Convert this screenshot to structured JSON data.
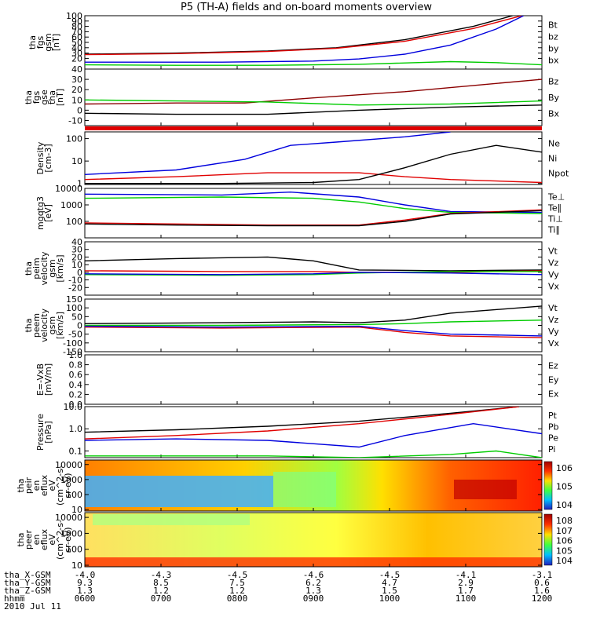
{
  "title": "P5 (TH-A) fields and on-board moments overview",
  "date": "2010 Jul 11",
  "colors": {
    "black": "#000000",
    "red": "#e00000",
    "green": "#00cc00",
    "blue": "#0000dd",
    "darkred": "#8b0000"
  },
  "chart_data": [
    {
      "type": "line",
      "ylabel": [
        "tha",
        "fgs",
        "gsm",
        "[nT]"
      ],
      "ylim": [
        0,
        100
      ],
      "yticks": [
        "100",
        "90",
        "80",
        "70",
        "60",
        "50",
        "40",
        "30",
        "20"
      ],
      "legend": [
        {
          "label": "Bt",
          "color": "black"
        },
        {
          "label": "bz",
          "color": "red"
        },
        {
          "label": "by",
          "color": "green"
        },
        {
          "label": "bx",
          "color": "blue"
        }
      ],
      "series": [
        {
          "name": "Bt",
          "color": "black",
          "x": [
            0,
            0.2,
            0.4,
            0.55,
            0.7,
            0.85,
            1.0
          ],
          "y": [
            28,
            30,
            34,
            40,
            55,
            80,
            115
          ]
        },
        {
          "name": "bz",
          "color": "red",
          "x": [
            0,
            0.2,
            0.4,
            0.55,
            0.7,
            0.85,
            1.0
          ],
          "y": [
            27,
            29,
            33,
            39,
            52,
            76,
            110
          ]
        },
        {
          "name": "by",
          "color": "green",
          "x": [
            0,
            0.2,
            0.4,
            0.6,
            0.8,
            0.9,
            1.0
          ],
          "y": [
            8,
            7,
            7,
            9,
            14,
            12,
            8
          ]
        },
        {
          "name": "bx",
          "color": "blue",
          "x": [
            0,
            0.3,
            0.5,
            0.6,
            0.7,
            0.8,
            0.9,
            0.96
          ],
          "y": [
            13,
            13,
            15,
            19,
            28,
            45,
            75,
            100
          ]
        }
      ]
    },
    {
      "type": "line",
      "ylabel": [
        "tha",
        "fgs",
        "gse",
        "tha",
        "[nT]"
      ],
      "ylim": [
        -15,
        40
      ],
      "yticks": [
        "40",
        "30",
        "20",
        "10",
        "0",
        "-10"
      ],
      "legend": [
        {
          "label": "Bz",
          "color": "darkred"
        },
        {
          "label": "By",
          "color": "green"
        },
        {
          "label": "Bx",
          "color": "black"
        }
      ],
      "series": [
        {
          "name": "Bz",
          "color": "darkred",
          "x": [
            0,
            0.2,
            0.35,
            0.5,
            0.7,
            0.85,
            1.0
          ],
          "y": [
            6,
            7,
            7,
            12,
            18,
            24,
            30
          ]
        },
        {
          "name": "By",
          "color": "green",
          "x": [
            0,
            0.2,
            0.4,
            0.6,
            0.8,
            1.0
          ],
          "y": [
            10,
            9,
            8,
            5,
            6,
            9
          ]
        },
        {
          "name": "Bx",
          "color": "black",
          "x": [
            0,
            0.2,
            0.4,
            0.6,
            0.8,
            1.0
          ],
          "y": [
            -3,
            -4,
            -4,
            0,
            3,
            5
          ]
        }
      ]
    },
    {
      "type": "line",
      "ylabel": [
        "Density",
        "[cm-3]"
      ],
      "yscale": "log",
      "ylim": [
        0.9,
        200
      ],
      "yticks": [
        "100",
        "10",
        "1"
      ],
      "legend": [
        {
          "label": "Ne",
          "color": "darkred"
        },
        {
          "label": "Ni",
          "color": "black"
        },
        {
          "label": "Npot",
          "color": "blue"
        }
      ],
      "series": [
        {
          "name": "Npot",
          "color": "blue",
          "x": [
            0,
            0.2,
            0.35,
            0.45,
            0.55,
            0.7,
            0.8
          ],
          "y": [
            2.5,
            4,
            12,
            50,
            70,
            120,
            200
          ]
        },
        {
          "name": "Ne",
          "color": "red",
          "x": [
            0,
            0.2,
            0.4,
            0.6,
            0.7,
            0.8,
            1.0
          ],
          "y": [
            1.5,
            2,
            3,
            3,
            2,
            1.5,
            1.1
          ]
        },
        {
          "name": "Ni",
          "color": "black",
          "x": [
            0,
            0.3,
            0.5,
            0.6,
            0.7,
            0.8,
            0.9,
            1.0
          ],
          "y": [
            1,
            1,
            1.1,
            1.5,
            5,
            20,
            50,
            25
          ]
        }
      ]
    },
    {
      "type": "line",
      "ylabel": [
        "mgqtg3",
        "[eV]"
      ],
      "yscale": "log",
      "ylim": [
        10,
        10000
      ],
      "yticks": [
        "10000",
        "1000",
        "100"
      ],
      "legend": [
        {
          "label": "Te⊥",
          "color": "red"
        },
        {
          "label": "Te∥",
          "color": "black"
        },
        {
          "label": "Ti⊥",
          "color": "darkred"
        },
        {
          "label": "Ti∥",
          "color": "green"
        }
      ],
      "series": [
        {
          "name": "Ti⊥",
          "color": "blue",
          "x": [
            0,
            0.3,
            0.45,
            0.6,
            0.7,
            0.8,
            1.0
          ],
          "y": [
            4500,
            4000,
            6000,
            3000,
            1000,
            400,
            350
          ]
        },
        {
          "name": "Ti∥",
          "color": "green",
          "x": [
            0,
            0.3,
            0.5,
            0.6,
            0.7,
            0.8,
            1.0
          ],
          "y": [
            2500,
            3000,
            2500,
            1500,
            600,
            350,
            300
          ]
        },
        {
          "name": "Te⊥",
          "color": "red",
          "x": [
            0,
            0.2,
            0.4,
            0.6,
            0.7,
            0.8,
            1.0
          ],
          "y": [
            80,
            70,
            60,
            60,
            120,
            300,
            500
          ]
        },
        {
          "name": "Te∥",
          "color": "black",
          "x": [
            0,
            0.2,
            0.4,
            0.6,
            0.7,
            0.8,
            1.0
          ],
          "y": [
            70,
            60,
            55,
            55,
            100,
            280,
            450
          ]
        }
      ]
    },
    {
      "type": "line",
      "ylabel": [
        "tha",
        "peim",
        "velocity",
        "gsm",
        "[km/s]"
      ],
      "ylim": [
        -30,
        40
      ],
      "yticks": [
        "40",
        "30",
        "20",
        "10",
        "0",
        "-10",
        "-20"
      ],
      "legend": [
        {
          "label": "Vt",
          "color": "black"
        },
        {
          "label": "Vz",
          "color": "red"
        },
        {
          "label": "Vy",
          "color": "green"
        },
        {
          "label": "Vx",
          "color": "blue"
        }
      ],
      "series": [
        {
          "name": "Vt",
          "color": "black",
          "x": [
            0,
            0.2,
            0.4,
            0.5,
            0.6,
            0.8,
            1.0
          ],
          "y": [
            15,
            18,
            20,
            15,
            3,
            2,
            3
          ]
        },
        {
          "name": "Vz",
          "color": "red",
          "x": [
            0,
            0.3,
            0.5,
            0.6,
            0.8,
            1.0
          ],
          "y": [
            2,
            1,
            1,
            0,
            0,
            2
          ]
        },
        {
          "name": "Vy",
          "color": "green",
          "x": [
            0,
            0.3,
            0.5,
            0.6,
            0.8,
            1.0
          ],
          "y": [
            -3,
            -4,
            -3,
            -1,
            1,
            1
          ]
        },
        {
          "name": "Vx",
          "color": "blue",
          "x": [
            0,
            0.3,
            0.5,
            0.6,
            0.8,
            1.0
          ],
          "y": [
            -2,
            -3,
            -2,
            0,
            -1,
            -3
          ]
        }
      ]
    },
    {
      "type": "line",
      "ylabel": [
        "tha",
        "peem",
        "velocity",
        "gsm",
        "[km/s]"
      ],
      "ylim": [
        -150,
        150
      ],
      "yticks": [
        "150",
        "100",
        "50",
        "0",
        "-50",
        "-100",
        "-150"
      ],
      "legend": [
        {
          "label": "Vt",
          "color": "black"
        },
        {
          "label": "Vz",
          "color": "red"
        },
        {
          "label": "Vy",
          "color": "green"
        },
        {
          "label": "Vx",
          "color": "blue"
        }
      ],
      "series": [
        {
          "name": "Vt",
          "color": "black",
          "x": [
            0,
            0.3,
            0.5,
            0.6,
            0.7,
            0.8,
            1.0
          ],
          "y": [
            10,
            15,
            20,
            15,
            30,
            70,
            110
          ]
        },
        {
          "name": "Vy",
          "color": "green",
          "x": [
            0,
            0.3,
            0.6,
            0.7,
            0.8,
            1.0
          ],
          "y": [
            0,
            0,
            5,
            10,
            20,
            30
          ]
        },
        {
          "name": "Vz",
          "color": "red",
          "x": [
            0,
            0.3,
            0.6,
            0.7,
            0.8,
            1.0
          ],
          "y": [
            -10,
            -15,
            -10,
            -40,
            -60,
            -70
          ]
        },
        {
          "name": "Vx",
          "color": "blue",
          "x": [
            0,
            0.3,
            0.6,
            0.7,
            0.8,
            1.0
          ],
          "y": [
            -5,
            -10,
            -5,
            -30,
            -50,
            -60
          ]
        }
      ]
    },
    {
      "type": "line",
      "ylabel": [
        "E=-VxB",
        "[mV/m]"
      ],
      "ylim": [
        0,
        1
      ],
      "yticks": [
        "1.0",
        "0.8",
        "0.6",
        "0.4",
        "0.2",
        "0.0"
      ],
      "legend": [
        {
          "label": "Ez",
          "color": "red"
        },
        {
          "label": "Ey",
          "color": "green"
        },
        {
          "label": "Ex",
          "color": "blue"
        }
      ],
      "series": []
    },
    {
      "type": "line",
      "ylabel": [
        "Pressure",
        "[nPa]"
      ],
      "yscale": "log",
      "ylim": [
        0.05,
        10
      ],
      "yticks": [
        "10.0",
        "1.0",
        "0.1"
      ],
      "legend": [
        {
          "label": "Pt",
          "color": "black"
        },
        {
          "label": "Pb",
          "color": "darkred"
        },
        {
          "label": "Pe",
          "color": "green"
        },
        {
          "label": "Pi",
          "color": "blue"
        }
      ],
      "series": [
        {
          "name": "Pt",
          "color": "black",
          "x": [
            0,
            0.2,
            0.4,
            0.6,
            0.8,
            0.95
          ],
          "y": [
            0.7,
            0.9,
            1.3,
            2.2,
            5,
            10
          ]
        },
        {
          "name": "Pb",
          "color": "red",
          "x": [
            0,
            0.2,
            0.4,
            0.6,
            0.8,
            0.95
          ],
          "y": [
            0.35,
            0.5,
            0.8,
            1.7,
            4.5,
            10
          ]
        },
        {
          "name": "Pi",
          "color": "blue",
          "x": [
            0,
            0.2,
            0.4,
            0.6,
            0.7,
            0.85,
            1.0
          ],
          "y": [
            0.3,
            0.35,
            0.3,
            0.15,
            0.5,
            1.7,
            0.6
          ]
        },
        {
          "name": "Pe",
          "color": "green",
          "x": [
            0,
            0.2,
            0.4,
            0.6,
            0.8,
            0.9,
            1.0
          ],
          "y": [
            0.06,
            0.06,
            0.06,
            0.05,
            0.07,
            0.1,
            0.05
          ]
        }
      ]
    },
    {
      "type": "heatmap",
      "ylabel": [
        "tha",
        "peir",
        "en",
        "eflux",
        "eV",
        "(cm^2-s-",
        "sr-eV)"
      ],
      "yscale": "log",
      "yticks": [
        "10000",
        "1000",
        "100",
        "10"
      ],
      "colorbar_ticks": [
        "10^6",
        "10^5",
        "10^4"
      ]
    },
    {
      "type": "heatmap",
      "ylabel": [
        "tha",
        "peer",
        "en",
        "eflux",
        "eV",
        "(cm^2-s-",
        "sr-eV)"
      ],
      "yscale": "log",
      "yticks": [
        "10000",
        "1000",
        "100",
        "10"
      ],
      "colorbar_ticks": [
        "10^8",
        "10^7",
        "10^6",
        "10^5",
        "10^4"
      ]
    }
  ],
  "footer": {
    "rows": [
      {
        "label": "tha_X-GSM",
        "values": [
          "-4.0",
          "-4.3",
          "-4.5",
          "-4.6",
          "-4.5",
          "-4.1",
          "-3.1"
        ]
      },
      {
        "label": "tha_Y-GSM",
        "values": [
          "9.3",
          "8.5",
          "7.5",
          "6.2",
          "4.7",
          "2.9",
          "0.6"
        ]
      },
      {
        "label": "tha_Z-GSM",
        "values": [
          "1.3",
          "1.2",
          "1.2",
          "1.3",
          "1.5",
          "1.7",
          "1.6"
        ]
      },
      {
        "label": "hhmm",
        "values": [
          "0600",
          "0700",
          "0800",
          "0900",
          "1000",
          "1100",
          "1200"
        ]
      }
    ]
  }
}
